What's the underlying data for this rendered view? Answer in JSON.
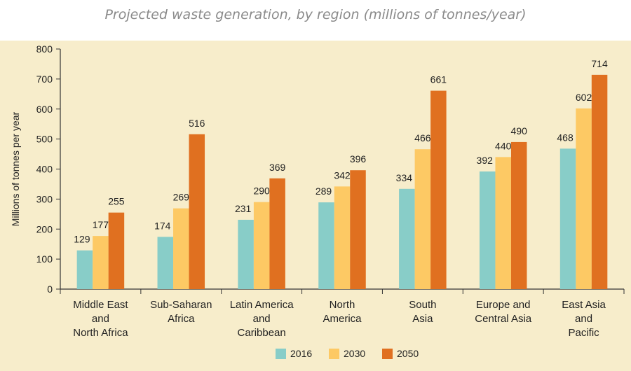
{
  "chart_data": {
    "type": "bar",
    "title": "Projected waste generation, by region (millions of tonnes/year)",
    "ylabel": "Millions of tonnes per year",
    "xlabel": "",
    "ylim": [
      0,
      800
    ],
    "yticks": [
      0,
      100,
      200,
      300,
      400,
      500,
      600,
      700,
      800
    ],
    "grid": false,
    "legend_position": "bottom",
    "categories": [
      "Middle East and North Africa",
      "Sub-Saharan Africa",
      "Latin America and Caribbean",
      "North America",
      "South Asia",
      "Europe and Central Asia",
      "East Asia and Pacific"
    ],
    "category_lines": [
      [
        "Middle East",
        "and",
        "North Africa"
      ],
      [
        "Sub-Saharan",
        "Africa"
      ],
      [
        "Latin America",
        "and",
        "Caribbean"
      ],
      [
        "North",
        "America"
      ],
      [
        "South",
        "Asia"
      ],
      [
        "Europe and",
        "Central Asia"
      ],
      [
        "East Asia",
        "and",
        "Pacific"
      ]
    ],
    "series": [
      {
        "name": "2016",
        "color": "#88cdc8",
        "values": [
          129,
          174,
          231,
          289,
          334,
          392,
          468
        ]
      },
      {
        "name": "2030",
        "color": "#fdc964",
        "values": [
          177,
          269,
          290,
          342,
          466,
          440,
          602
        ]
      },
      {
        "name": "2050",
        "color": "#e07020",
        "values": [
          255,
          516,
          369,
          396,
          661,
          490,
          714
        ]
      }
    ]
  }
}
